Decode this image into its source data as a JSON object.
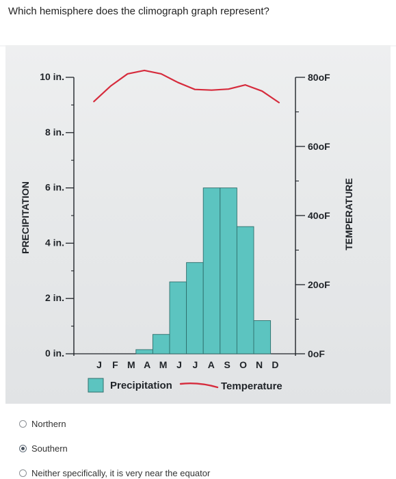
{
  "question": "Which hemisphere does the climograph graph represent?",
  "chart_data": {
    "type": "bar",
    "categories": [
      "J",
      "F",
      "M",
      "A",
      "M",
      "J",
      "J",
      "A",
      "S",
      "O",
      "N",
      "D"
    ],
    "left_axis": {
      "label": "PRECIPITATION",
      "unit": "in.",
      "ticks": [
        "10 in.",
        "8 in.",
        "6 in.",
        "4 in.",
        "2 in.",
        "0 in."
      ],
      "ylim": [
        0,
        10
      ]
    },
    "right_axis": {
      "label": "TEMPERATURE",
      "ticks": [
        "80oF",
        "60oF",
        "40oF",
        "20oF",
        "0oF"
      ],
      "ylim": [
        0,
        80
      ]
    },
    "series": [
      {
        "name": "Precipitation",
        "type": "bar",
        "color": "#5cc4c0",
        "values": [
          0,
          0,
          0,
          0.15,
          0.7,
          2.6,
          3.3,
          6.0,
          6.0,
          4.6,
          1.2,
          0
        ]
      },
      {
        "name": "Temperature",
        "type": "line",
        "color": "#d62b3c",
        "values": [
          73,
          77.5,
          81,
          82,
          81,
          78.5,
          76.5,
          76.3,
          76.6,
          77.8,
          76,
          72.7
        ]
      }
    ],
    "legend": {
      "placement": "bottom"
    }
  },
  "options": [
    {
      "label": "Northern",
      "selected": false
    },
    {
      "label": "Southern",
      "selected": true
    },
    {
      "label": "Neither specifically, it is very near the equator",
      "selected": false
    }
  ]
}
